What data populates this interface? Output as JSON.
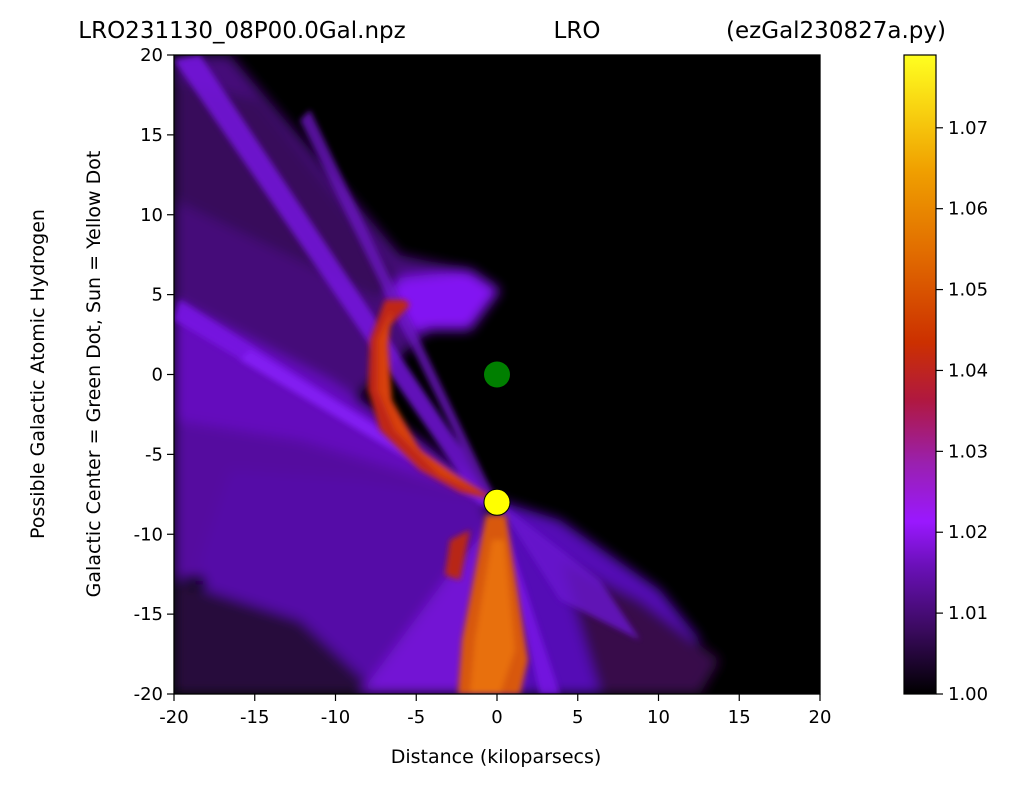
{
  "title": {
    "left": "LRO231130_08P00.0Gal.npz",
    "center": "LRO",
    "right": "(ezGal230827a.py)"
  },
  "chart_data": {
    "type": "heatmap",
    "xlabel": "Distance (kiloparsecs)",
    "ylabel_line1": "Possible Galactic Atomic Hydrogen",
    "ylabel_line2": "Galactic Center = Green Dot, Sun = Yellow Dot",
    "xlim": [
      -20,
      20
    ],
    "ylim": [
      -20,
      20
    ],
    "xticks": [
      -20,
      -15,
      -10,
      -5,
      0,
      5,
      10,
      15,
      20
    ],
    "yticks": [
      -20,
      -15,
      -10,
      -5,
      0,
      5,
      10,
      15,
      20
    ],
    "xtick_labels": [
      "-20",
      "-15",
      "-10",
      "-5",
      "0",
      "5",
      "10",
      "15",
      "20"
    ],
    "ytick_labels": [
      "-20",
      "-15",
      "-10",
      "-5",
      "0",
      "5",
      "10",
      "15",
      "20"
    ],
    "colorbar": {
      "range": [
        1.0,
        1.079
      ],
      "ticks": [
        1.0,
        1.01,
        1.02,
        1.03,
        1.04,
        1.05,
        1.06,
        1.07
      ],
      "tick_labels": [
        "1.00",
        "1.01",
        "1.02",
        "1.03",
        "1.04",
        "1.05",
        "1.06",
        "1.07"
      ],
      "colormap": [
        "#000000",
        "#3a0a5e",
        "#7a10c8",
        "#a018ff",
        "#9a20b0",
        "#c01830",
        "#cc3000",
        "#e06800",
        "#f0a000",
        "#ffe020",
        "#ffff30"
      ]
    },
    "markers": [
      {
        "name": "Galactic Center",
        "x": 0,
        "y": 0,
        "color": "#007f00"
      },
      {
        "name": "Sun",
        "x": 0,
        "y": -8,
        "color": "#ffff00"
      }
    ],
    "background_color": "#000000",
    "grid": false
  }
}
